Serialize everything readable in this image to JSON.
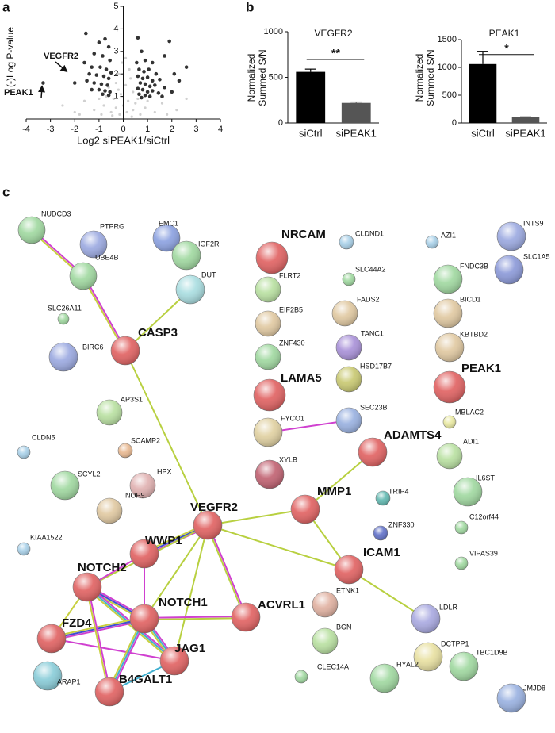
{
  "panel_labels": [
    "a",
    "b",
    "c"
  ],
  "chart_data": [
    {
      "type": "scatter",
      "xlabel": "Log2 siPEAK1/siCtrl",
      "ylabel": "(-)Log P-value",
      "xlim": [
        -4,
        4
      ],
      "ylim": [
        0,
        5
      ],
      "xticks": [
        -4,
        -3,
        -2,
        -1,
        0,
        1,
        2,
        3,
        4
      ],
      "yticks": [
        1,
        2,
        3,
        4,
        5
      ],
      "annotations": [
        "VEGFR2",
        "PEAK1"
      ],
      "series": [
        {
          "color": "#d0d0d0",
          "x": [
            -0.3,
            0.2,
            -0.5,
            0.4,
            -0.1,
            0.1,
            -0.2,
            0.3,
            -0.8,
            0.9,
            -1.2,
            1.3,
            -0.4,
            0.5,
            -0.9,
            0.7,
            -0.15,
            0.15,
            -1.6,
            1.6,
            -2.0,
            2.2,
            0.0,
            -0.6,
            0.4,
            -0.05,
            0.1,
            -2.5,
            2.6,
            -0.3,
            0.25,
            -1.0,
            1.0,
            -0.7,
            0.6,
            -0.2,
            0.35,
            -0.45,
            1.8,
            -1.8
          ],
          "values": [
            0.5,
            0.8,
            0.3,
            0.4,
            1.1,
            1.5,
            2.0,
            1.8,
            0.6,
            0.5,
            0.4,
            0.3,
            0.9,
            0.7,
            0.2,
            0.2,
            0.2,
            0.3,
            0.8,
            0.7,
            0.3,
            0.4,
            0.6,
            1.4,
            1.2,
            2.5,
            2.7,
            0.6,
            0.9,
            1.6,
            2.2,
            0.9,
            0.8,
            1.0,
            0.9,
            1.3,
            0.1,
            0.15,
            0.2,
            0.2
          ]
        },
        {
          "color": "#333333",
          "x": [
            -1.54,
            -1.0,
            -0.75,
            -0.6,
            -1.2,
            -0.85,
            -0.55,
            -1.6,
            -1.3,
            -0.95,
            -0.7,
            -0.5,
            -1.4,
            -1.1,
            -0.8,
            -0.6,
            -1.5,
            -1.2,
            -0.9,
            -0.65,
            -1.0,
            -0.75,
            -0.55,
            -1.3,
            -0.85,
            -0.6,
            -3.3,
            -2.0,
            0.6,
            0.75,
            0.55,
            0.9,
            1.2,
            1.9,
            2.6,
            1.7,
            2.1,
            2.3,
            0.65,
            0.85,
            1.05,
            1.35,
            0.6,
            0.8,
            1.0,
            1.2,
            1.5,
            0.7,
            0.9,
            1.1,
            1.3,
            1.7,
            0.6,
            0.8,
            1.0,
            1.2,
            1.45,
            0.65,
            0.9,
            1.1,
            1.6,
            2.0,
            0.75
          ],
          "values": [
            3.8,
            3.4,
            3.55,
            3.2,
            2.9,
            2.8,
            2.6,
            2.5,
            2.3,
            2.3,
            2.2,
            2.05,
            2.0,
            1.95,
            1.9,
            1.8,
            1.7,
            1.6,
            1.55,
            1.5,
            1.3,
            1.25,
            1.2,
            1.3,
            1.1,
            1.05,
            1.6,
            1.6,
            3.6,
            3.0,
            2.5,
            2.6,
            2.5,
            3.45,
            2.3,
            2.8,
            2.0,
            1.7,
            2.2,
            2.1,
            2.2,
            2.0,
            1.9,
            1.8,
            1.85,
            1.7,
            1.75,
            1.6,
            1.55,
            1.45,
            1.5,
            1.4,
            1.35,
            1.3,
            1.2,
            1.25,
            1.15,
            1.1,
            1.05,
            1.0,
            1.0,
            1.2,
            0.95
          ]
        }
      ]
    },
    {
      "type": "bar",
      "title": "VEGFR2",
      "ylabel": [
        "Normalized",
        "Summed S/N"
      ],
      "annotation": "**",
      "categories": [
        "siCtrl",
        "siPEAK1"
      ],
      "values": [
        560,
        220
      ],
      "errors": [
        30,
        10
      ],
      "colors": [
        "#000000",
        "#555555"
      ],
      "ylim": [
        0,
        1000
      ],
      "yticks": [
        0,
        500,
        1000
      ]
    },
    {
      "type": "bar",
      "title": "PEAK1",
      "ylabel": [
        "Normalized",
        "Summed S/N"
      ],
      "annotation": "*",
      "categories": [
        "siCtrl",
        "siPEAK1"
      ],
      "values": [
        1060,
        100
      ],
      "errors": [
        230,
        10
      ],
      "colors": [
        "#000000",
        "#555555"
      ],
      "ylim": [
        0,
        1500
      ],
      "yticks": [
        0,
        500,
        1000,
        1500
      ]
    }
  ],
  "network": {
    "nodes": [
      {
        "label": "NUDCD3",
        "color": "#9fd89f"
      },
      {
        "label": "PTPRG",
        "color": "#9aa8e0"
      },
      {
        "label": "EMC1",
        "color": "#8aa0e0"
      },
      {
        "label": "IGF2R",
        "color": "#9fd89f"
      },
      {
        "label": "UBE4B",
        "color": "#9fd89f"
      },
      {
        "label": "DUT",
        "color": "#a8dde0"
      },
      {
        "label": "SLC26A11",
        "color": "#9fd89f"
      },
      {
        "label": "CASP3",
        "color": "#e06060"
      },
      {
        "label": "BIRC6",
        "color": "#9aa8e0"
      },
      {
        "label": "AP3S1",
        "color": "#b8e0a0"
      },
      {
        "label": "SCAMP2",
        "color": "#e8b890"
      },
      {
        "label": "CLDN5",
        "color": "#a8d0e8"
      },
      {
        "label": "SCYL2",
        "color": "#9fd89f"
      },
      {
        "label": "HPX",
        "color": "#e0b0b0"
      },
      {
        "label": "NOP9",
        "color": "#e0c8a0"
      },
      {
        "label": "KIAA1522",
        "color": "#a8d0e8"
      },
      {
        "label": "VEGFR2",
        "color": "#e06060"
      },
      {
        "label": "WWP1",
        "color": "#e06060"
      },
      {
        "label": "NOTCH2",
        "color": "#e06060"
      },
      {
        "label": "NOTCH1",
        "color": "#e06060"
      },
      {
        "label": "ACVRL1",
        "color": "#e06060"
      },
      {
        "label": "FZD4",
        "color": "#e06060"
      },
      {
        "label": "JAG1",
        "color": "#e06060"
      },
      {
        "label": "ARAP1",
        "color": "#88ccd8"
      },
      {
        "label": "B4GALT1",
        "color": "#e06060"
      },
      {
        "label": "NRCAM",
        "color": "#e06060"
      },
      {
        "label": "CLDND1",
        "color": "#a8d0e8"
      },
      {
        "label": "AZI1",
        "color": "#a8d0e8"
      },
      {
        "label": "INTS9",
        "color": "#9aa8e0"
      },
      {
        "label": "SLC1A5",
        "color": "#8a98d8"
      },
      {
        "label": "FLRT2",
        "color": "#b8e0a0"
      },
      {
        "label": "SLC44A2",
        "color": "#9fd89f"
      },
      {
        "label": "FNDC3B",
        "color": "#9fd89f"
      },
      {
        "label": "EIF2B5",
        "color": "#e0c8a0"
      },
      {
        "label": "FADS2",
        "color": "#e0c8a0"
      },
      {
        "label": "BICD1",
        "color": "#e0c8a0"
      },
      {
        "label": "ZNF430",
        "color": "#9fd89f"
      },
      {
        "label": "TANC1",
        "color": "#a890d8"
      },
      {
        "label": "KBTBD2",
        "color": "#e0c8a0"
      },
      {
        "label": "LAMA5",
        "color": "#e06060"
      },
      {
        "label": "HSD17B7",
        "color": "#c8c870"
      },
      {
        "label": "PEAK1",
        "color": "#e06060"
      },
      {
        "label": "FYCO1",
        "color": "#e0d0a0"
      },
      {
        "label": "SEC23B",
        "color": "#98b0e0"
      },
      {
        "label": "MBLAC2",
        "color": "#e8e8a0"
      },
      {
        "label": "ADAMTS4",
        "color": "#e06060"
      },
      {
        "label": "ADI1",
        "color": "#b8e0a0"
      },
      {
        "label": "XYLB",
        "color": "#c06070"
      },
      {
        "label": "TRIP4",
        "color": "#60b8b0"
      },
      {
        "label": "IL6ST",
        "color": "#9fd89f"
      },
      {
        "label": "MMP1",
        "color": "#e06060"
      },
      {
        "label": "ZNF330",
        "color": "#6070c8"
      },
      {
        "label": "C12orf44",
        "color": "#9fd89f"
      },
      {
        "label": "ICAM1",
        "color": "#e06060"
      },
      {
        "label": "VIPAS39",
        "color": "#9fd89f"
      },
      {
        "label": "ETNK1",
        "color": "#e0b0a0"
      },
      {
        "label": "LDLR",
        "color": "#a8a8e0"
      },
      {
        "label": "DCTPP1",
        "color": "#e8e0a0"
      },
      {
        "label": "BGN",
        "color": "#b8e0a0"
      },
      {
        "label": "TBC1D9B",
        "color": "#9fd89f"
      },
      {
        "label": "HYAL2",
        "color": "#9fd89f"
      },
      {
        "label": "CLEC14A",
        "color": "#9fd89f"
      },
      {
        "label": "JMJD8",
        "color": "#98b0e0"
      }
    ],
    "edges": [
      {
        "source": 0,
        "target": 4,
        "colors": [
          "#d040d0",
          "#c8d040"
        ]
      },
      {
        "source": 4,
        "target": 7,
        "colors": [
          "#d040d0",
          "#c8d040"
        ]
      },
      {
        "source": 5,
        "target": 7,
        "colors": [
          "#b8d040"
        ]
      },
      {
        "source": 7,
        "target": 16,
        "colors": [
          "#b8d040"
        ]
      },
      {
        "source": 16,
        "target": 50,
        "colors": [
          "#b8d040"
        ]
      },
      {
        "source": 50,
        "target": 45,
        "colors": [
          "#b8d040"
        ]
      },
      {
        "source": 16,
        "target": 53,
        "colors": [
          "#b8d040"
        ]
      },
      {
        "source": 53,
        "target": 56,
        "colors": [
          "#b8d040"
        ]
      },
      {
        "source": 50,
        "target": 53,
        "colors": [
          "#b8d040"
        ]
      },
      {
        "source": 42,
        "target": 43,
        "colors": [
          "#d040d0"
        ]
      },
      {
        "source": 16,
        "target": 17,
        "colors": [
          "#d040d0",
          "#4050d0",
          "#c8d040"
        ]
      },
      {
        "source": 16,
        "target": 19,
        "colors": [
          "#b8d040"
        ]
      },
      {
        "source": 16,
        "target": 20,
        "colors": [
          "#d040d0",
          "#b8d040"
        ]
      },
      {
        "source": 16,
        "target": 22,
        "colors": [
          "#b8d040"
        ]
      },
      {
        "source": 16,
        "target": 18,
        "colors": [
          "#b8d040"
        ]
      },
      {
        "source": 17,
        "target": 18,
        "colors": [
          "#d040d0"
        ]
      },
      {
        "source": 17,
        "target": 19,
        "colors": [
          "#d040d0"
        ]
      },
      {
        "source": 18,
        "target": 19,
        "colors": [
          "#d040d0",
          "#4050d0",
          "#c8d040"
        ]
      },
      {
        "source": 18,
        "target": 21,
        "colors": [
          "#c8d040"
        ]
      },
      {
        "source": 18,
        "target": 22,
        "colors": [
          "#d040d0",
          "#40b0d0",
          "#c8d040"
        ]
      },
      {
        "source": 19,
        "target": 20,
        "colors": [
          "#d040d0",
          "#b8d040"
        ]
      },
      {
        "source": 19,
        "target": 22,
        "colors": [
          "#d040d0",
          "#40b0d0",
          "#c8d040"
        ]
      },
      {
        "source": 19,
        "target": 21,
        "colors": [
          "#d040d0",
          "#4050d0",
          "#c8d040"
        ]
      },
      {
        "source": 21,
        "target": 22,
        "colors": [
          "#d040d0"
        ]
      },
      {
        "source": 19,
        "target": 24,
        "colors": [
          "#d040d0",
          "#40b0d0",
          "#c8d040"
        ]
      },
      {
        "source": 22,
        "target": 24,
        "colors": [
          "#40b0d0"
        ]
      },
      {
        "source": 18,
        "target": 24,
        "colors": [
          "#d040d0",
          "#c8d040"
        ]
      }
    ]
  }
}
